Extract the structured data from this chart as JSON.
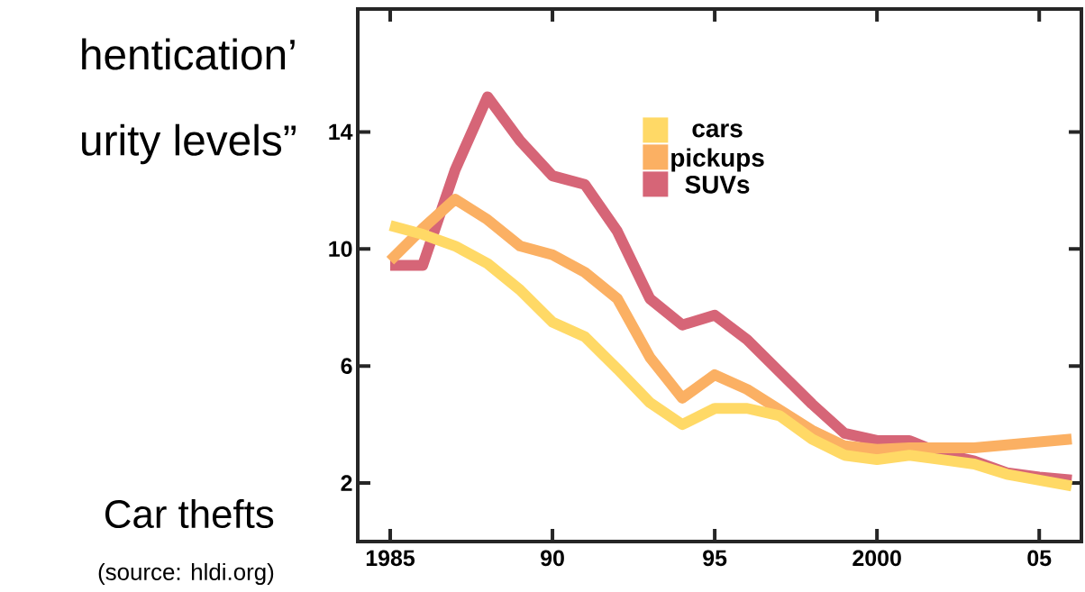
{
  "chart_data": {
    "type": "line",
    "x": [
      1985,
      1986,
      1987,
      1988,
      1989,
      1990,
      1991,
      1992,
      1993,
      1994,
      1995,
      1996,
      1997,
      1998,
      1999,
      2000,
      2001,
      2002,
      2003,
      2004,
      2005,
      2006
    ],
    "series": [
      {
        "name": "cars",
        "color": "#ffd966",
        "values": [
          10.8,
          10.5,
          10.1,
          9.5,
          8.6,
          7.5,
          7.0,
          5.9,
          4.75,
          4.0,
          4.55,
          4.55,
          4.3,
          3.5,
          2.95,
          2.8,
          2.95,
          2.8,
          2.65,
          2.3,
          2.1,
          1.9
        ]
      },
      {
        "name": "pickups",
        "color": "#fbb063",
        "values": [
          9.6,
          10.7,
          11.7,
          11.0,
          10.1,
          9.8,
          9.2,
          8.3,
          6.3,
          4.9,
          5.7,
          5.2,
          4.5,
          3.8,
          3.27,
          3.15,
          3.2,
          3.2,
          3.2,
          3.3,
          3.4,
          3.5
        ]
      },
      {
        "name": "SUVs",
        "color": "#d66577",
        "values": [
          9.44,
          9.44,
          12.7,
          15.2,
          13.7,
          12.5,
          12.2,
          10.6,
          8.3,
          7.4,
          7.74,
          6.9,
          5.8,
          4.7,
          3.7,
          3.45,
          3.45,
          3.0,
          2.75,
          2.35,
          2.2,
          2.1
        ]
      }
    ],
    "xlim": [
      1984,
      2006.3
    ],
    "ylim": [
      0,
      18.2
    ],
    "xticks": [
      1985,
      {
        "value": 1990,
        "label": "90"
      },
      {
        "value": 1995,
        "label": "95"
      },
      2000,
      {
        "value": 2005,
        "label": "05"
      }
    ],
    "yticks": [
      2,
      6,
      10,
      14
    ],
    "legend": "top",
    "annotations": [
      "hentication’",
      "urity levels”",
      "Car thefts",
      "(source: hldi.org)"
    ]
  }
}
